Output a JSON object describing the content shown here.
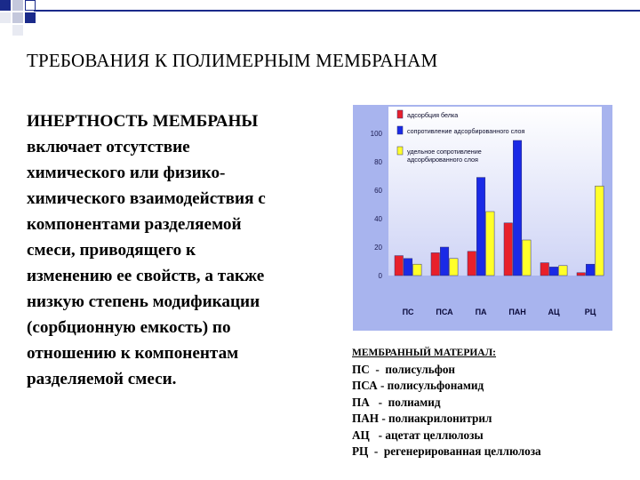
{
  "title": "ТРЕБОВАНИЯ К ПОЛИМЕРНЫМ МЕМБРАНАМ",
  "body": [
    "ИНЕРТНОСТЬ МЕМБРАНЫ",
    "включает отсутствие",
    "химического или физико-",
    "химического взаимодействия с",
    "компонентами разделяемой",
    "смеси, приводящего к",
    "изменению ее свойств, а также",
    "низкую степень модификации",
    "(сорбционную  емкость) по",
    "отношению к компонентам",
    "разделяемой смеси."
  ],
  "colors": {
    "panel": "#a8b4ee",
    "plot_top": "#ffffff",
    "plot_bottom": "#c8cef4",
    "series": [
      "#e8202a",
      "#1a2ae6",
      "#ffff2a"
    ],
    "deco_blue": "#1a2a8a"
  },
  "chart_data": {
    "type": "bar",
    "categories": [
      "ПС",
      "ПСА",
      "ПА",
      "ПАН",
      "АЦ",
      "РЦ"
    ],
    "series": [
      {
        "name": "адсорбция белка",
        "values": [
          14,
          16,
          17,
          37,
          9,
          2
        ]
      },
      {
        "name": "сопротивление адсорбированного слоя",
        "values": [
          12,
          20,
          69,
          95,
          6,
          8
        ]
      },
      {
        "name": "удельное сопротивление адсорбированного слоя",
        "values": [
          8,
          12,
          45,
          25,
          7,
          63
        ]
      }
    ],
    "yticks": [
      "0",
      "20",
      "40",
      "60",
      "80",
      "100"
    ],
    "ylim": [
      0,
      100
    ],
    "title": "",
    "xlabel": "",
    "ylabel": "",
    "legend_position": "top",
    "grid": false
  },
  "legend": {
    "header": "МЕМБРАННЫЙ МАТЕРИАЛ:",
    "rows": [
      {
        "abbr": "ПС",
        "sep": "  -  ",
        "name": "полисульфон"
      },
      {
        "abbr": "ПСА",
        "sep": " - ",
        "name": "полисульфонамид"
      },
      {
        "abbr": "ПА",
        "sep": "   -  ",
        "name": "полиамид"
      },
      {
        "abbr": "ПАН",
        "sep": " - ",
        "name": "полиакрилонитрил"
      },
      {
        "abbr": "АЦ",
        "sep": "   - ",
        "name": "ацетат целлюлозы"
      },
      {
        "abbr": "РЦ",
        "sep": "  -  ",
        "name": "регенерированная целлюлоза"
      }
    ]
  }
}
